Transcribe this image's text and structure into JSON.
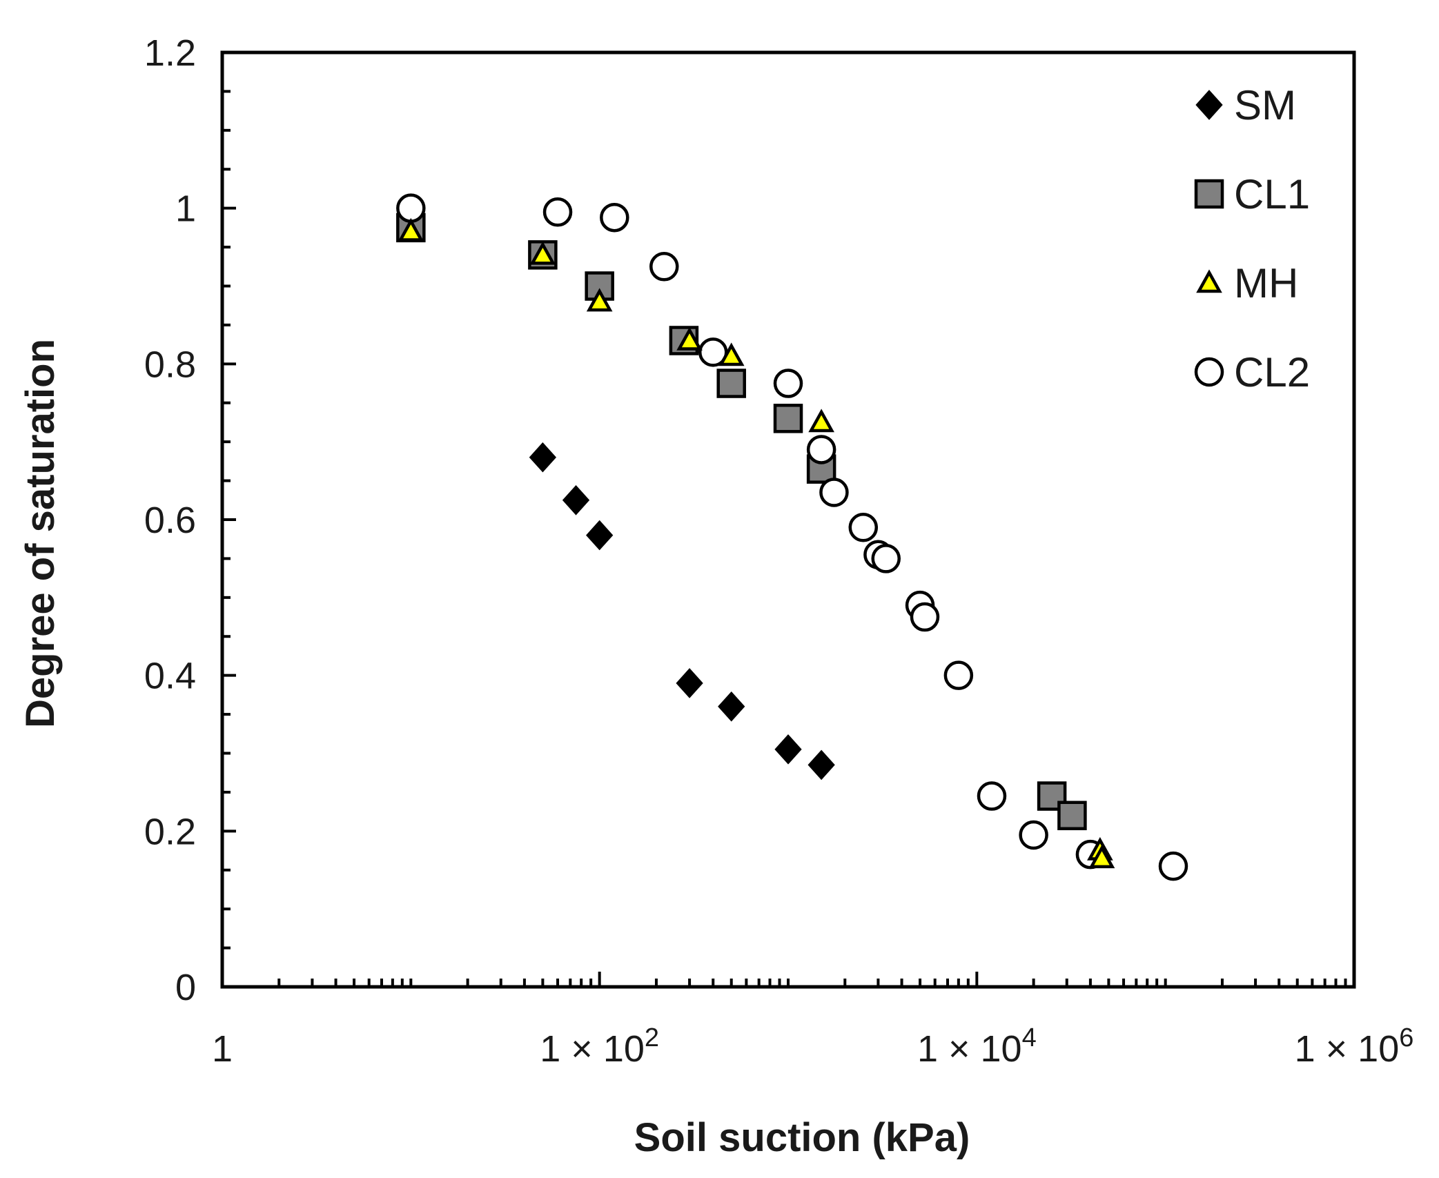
{
  "chart_data": {
    "type": "scatter",
    "title": "",
    "xlabel": "Soil suction (kPa)",
    "ylabel": "Degree of saturation",
    "xscale": "log",
    "xlim": [
      1,
      1000000
    ],
    "ylim": [
      0,
      1.2
    ],
    "x_ticks": [
      {
        "value": 1,
        "mantissa": "1",
        "exp": ""
      },
      {
        "value": 100,
        "mantissa": "1 × 10",
        "exp": "2"
      },
      {
        "value": 10000,
        "mantissa": "1 × 10",
        "exp": "4"
      },
      {
        "value": 1000000,
        "mantissa": "1 × 10",
        "exp": "6"
      }
    ],
    "y_ticks": [
      {
        "value": 0,
        "label": "0"
      },
      {
        "value": 0.2,
        "label": "0.2"
      },
      {
        "value": 0.4,
        "label": "0.4"
      },
      {
        "value": 0.6,
        "label": "0.6"
      },
      {
        "value": 0.8,
        "label": "0.8"
      },
      {
        "value": 1,
        "label": "1"
      },
      {
        "value": 1.2,
        "label": "1.2"
      }
    ],
    "legend_position": "top-right",
    "series": [
      {
        "name": "SM",
        "marker": "diamond",
        "fill": "#000000",
        "stroke": "#000000",
        "points": [
          [
            50,
            0.68
          ],
          [
            75,
            0.625
          ],
          [
            100,
            0.58
          ],
          [
            300,
            0.39
          ],
          [
            500,
            0.36
          ],
          [
            1000,
            0.305
          ],
          [
            1500,
            0.285
          ]
        ]
      },
      {
        "name": "CL1",
        "marker": "square",
        "fill": "#808080",
        "stroke": "#000000",
        "points": [
          [
            10,
            0.975
          ],
          [
            50,
            0.94
          ],
          [
            100,
            0.9
          ],
          [
            280,
            0.83
          ],
          [
            500,
            0.775
          ],
          [
            1000,
            0.73
          ],
          [
            1500,
            0.665
          ],
          [
            25000,
            0.245
          ],
          [
            32000,
            0.22
          ]
        ]
      },
      {
        "name": "MH",
        "marker": "triangle",
        "fill": "#ffff00",
        "stroke": "#000000",
        "points": [
          [
            10,
            0.97
          ],
          [
            50,
            0.94
          ],
          [
            100,
            0.88
          ],
          [
            300,
            0.83
          ],
          [
            500,
            0.81
          ],
          [
            1500,
            0.725
          ],
          [
            45000,
            0.175
          ],
          [
            46000,
            0.165
          ]
        ]
      },
      {
        "name": "CL2",
        "marker": "circle",
        "fill": "#ffffff",
        "stroke": "#000000",
        "points": [
          [
            10,
            1.0
          ],
          [
            60,
            0.995
          ],
          [
            120,
            0.988
          ],
          [
            220,
            0.925
          ],
          [
            400,
            0.815
          ],
          [
            1000,
            0.775
          ],
          [
            1500,
            0.69
          ],
          [
            1750,
            0.635
          ],
          [
            2500,
            0.59
          ],
          [
            3000,
            0.555
          ],
          [
            3300,
            0.55
          ],
          [
            5000,
            0.49
          ],
          [
            5300,
            0.475
          ],
          [
            8000,
            0.4
          ],
          [
            12000,
            0.245
          ],
          [
            20000,
            0.195
          ],
          [
            40000,
            0.17
          ],
          [
            110000,
            0.155
          ]
        ]
      }
    ]
  }
}
